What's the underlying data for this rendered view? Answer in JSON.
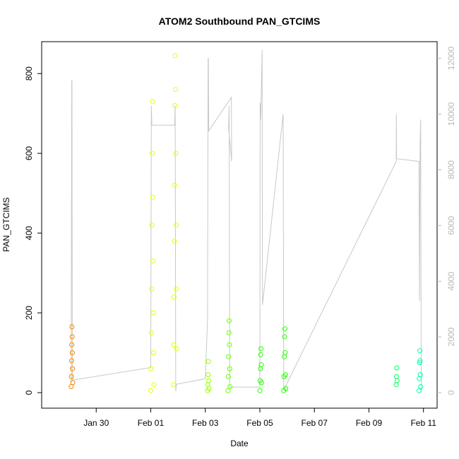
{
  "chart_data": {
    "type": "scatter",
    "title": "ATOM2 Southbound PAN_GTCIMS",
    "xlabel": "Date",
    "ylabel": "PAN_GTCIMS",
    "xlim": [
      "2017-01-28T00:00",
      "2017-02-11T12:00"
    ],
    "ylim": [
      0,
      880
    ],
    "y2lim": [
      0,
      12600
    ],
    "x_ticks": [
      {
        "date": "2017-01-30",
        "label": "Jan 30"
      },
      {
        "date": "2017-02-01",
        "label": "Feb 01"
      },
      {
        "date": "2017-02-03",
        "label": "Feb 03"
      },
      {
        "date": "2017-02-05",
        "label": "Feb 05"
      },
      {
        "date": "2017-02-07",
        "label": "Feb 07"
      },
      {
        "date": "2017-02-09",
        "label": "Feb 09"
      },
      {
        "date": "2017-02-11",
        "label": "Feb 11"
      }
    ],
    "y_ticks": [
      0,
      200,
      400,
      600,
      800
    ],
    "y2_ticks": [
      0,
      2000,
      4000,
      6000,
      8000,
      10000,
      12000
    ],
    "grid": false,
    "series": [
      {
        "color": "#f28a00",
        "points": [
          {
            "x": "2017-01-29T02:00",
            "y": 15
          },
          {
            "x": "2017-01-29T02:10",
            "y": 40
          },
          {
            "x": "2017-01-29T02:20",
            "y": 80
          },
          {
            "x": "2017-01-29T02:30",
            "y": 120
          },
          {
            "x": "2017-01-29T02:40",
            "y": 165
          },
          {
            "x": "2017-01-29T02:50",
            "y": 140
          },
          {
            "x": "2017-01-29T03:00",
            "y": 100
          },
          {
            "x": "2017-01-29T03:10",
            "y": 60
          },
          {
            "x": "2017-01-29T03:20",
            "y": 25
          }
        ]
      },
      {
        "color": "#e6ff00",
        "points": [
          {
            "x": "2017-02-01T00:00",
            "y": 5
          },
          {
            "x": "2017-02-01T00:15",
            "y": 60
          },
          {
            "x": "2017-02-01T00:30",
            "y": 150
          },
          {
            "x": "2017-02-01T00:45",
            "y": 260
          },
          {
            "x": "2017-02-01T01:00",
            "y": 420
          },
          {
            "x": "2017-02-01T01:15",
            "y": 600
          },
          {
            "x": "2017-02-01T01:30",
            "y": 730
          },
          {
            "x": "2017-02-01T01:45",
            "y": 490
          },
          {
            "x": "2017-02-01T02:00",
            "y": 330
          },
          {
            "x": "2017-02-01T02:15",
            "y": 200
          },
          {
            "x": "2017-02-01T02:30",
            "y": 100
          },
          {
            "x": "2017-02-01T02:45",
            "y": 20
          },
          {
            "x": "2017-02-01T20:00",
            "y": 20
          },
          {
            "x": "2017-02-01T20:15",
            "y": 120
          },
          {
            "x": "2017-02-01T20:30",
            "y": 240
          },
          {
            "x": "2017-02-01T20:45",
            "y": 380
          },
          {
            "x": "2017-02-01T21:00",
            "y": 520
          },
          {
            "x": "2017-02-01T21:15",
            "y": 720
          },
          {
            "x": "2017-02-01T21:30",
            "y": 845
          },
          {
            "x": "2017-02-01T21:45",
            "y": 760
          },
          {
            "x": "2017-02-01T22:00",
            "y": 600
          },
          {
            "x": "2017-02-01T22:15",
            "y": 420
          },
          {
            "x": "2017-02-01T22:30",
            "y": 260
          },
          {
            "x": "2017-02-01T22:45",
            "y": 110
          }
        ]
      },
      {
        "color": "#99ff00",
        "points": [
          {
            "x": "2017-02-03T02:00",
            "y": 5
          },
          {
            "x": "2017-02-03T02:15",
            "y": 20
          },
          {
            "x": "2017-02-03T02:30",
            "y": 45
          },
          {
            "x": "2017-02-03T02:45",
            "y": 78
          },
          {
            "x": "2017-02-03T03:00",
            "y": 30
          },
          {
            "x": "2017-02-03T03:15",
            "y": 10
          }
        ]
      },
      {
        "color": "#66ff00",
        "points": [
          {
            "x": "2017-02-03T20:00",
            "y": 5
          },
          {
            "x": "2017-02-03T20:15",
            "y": 40
          },
          {
            "x": "2017-02-03T20:30",
            "y": 90
          },
          {
            "x": "2017-02-03T20:45",
            "y": 150
          },
          {
            "x": "2017-02-03T21:00",
            "y": 180
          },
          {
            "x": "2017-02-03T21:15",
            "y": 120
          },
          {
            "x": "2017-02-03T21:30",
            "y": 60
          },
          {
            "x": "2017-02-03T21:45",
            "y": 15
          }
        ]
      },
      {
        "color": "#22ff00",
        "points": [
          {
            "x": "2017-02-05T00:00",
            "y": 5
          },
          {
            "x": "2017-02-05T00:15",
            "y": 30
          },
          {
            "x": "2017-02-05T00:30",
            "y": 60
          },
          {
            "x": "2017-02-05T00:45",
            "y": 95
          },
          {
            "x": "2017-02-05T01:00",
            "y": 110
          },
          {
            "x": "2017-02-05T01:15",
            "y": 70
          },
          {
            "x": "2017-02-05T01:30",
            "y": 25
          },
          {
            "x": "2017-02-05T21:00",
            "y": 5
          },
          {
            "x": "2017-02-05T21:15",
            "y": 40
          },
          {
            "x": "2017-02-05T21:30",
            "y": 90
          },
          {
            "x": "2017-02-05T21:45",
            "y": 140
          },
          {
            "x": "2017-02-05T22:00",
            "y": 160
          },
          {
            "x": "2017-02-05T22:15",
            "y": 100
          },
          {
            "x": "2017-02-05T22:30",
            "y": 45
          },
          {
            "x": "2017-02-05T22:45",
            "y": 10
          }
        ]
      },
      {
        "color": "#00ff5a",
        "points": [
          {
            "x": "2017-02-10T00:00",
            "y": 20
          },
          {
            "x": "2017-02-10T00:15",
            "y": 40
          },
          {
            "x": "2017-02-10T00:30",
            "y": 62
          },
          {
            "x": "2017-02-10T00:45",
            "y": 30
          }
        ]
      },
      {
        "color": "#00ffb0",
        "points": [
          {
            "x": "2017-02-10T20:00",
            "y": 5
          },
          {
            "x": "2017-02-10T20:15",
            "y": 35
          },
          {
            "x": "2017-02-10T20:30",
            "y": 75
          },
          {
            "x": "2017-02-10T20:45",
            "y": 105
          },
          {
            "x": "2017-02-10T21:00",
            "y": 80
          },
          {
            "x": "2017-02-10T21:15",
            "y": 45
          },
          {
            "x": "2017-02-10T21:30",
            "y": 15
          }
        ]
      }
    ],
    "line_series": {
      "axis": "right",
      "color": "#c8c8c8",
      "points": [
        {
          "x": "2017-01-29T02:00",
          "y": 350
        },
        {
          "x": "2017-01-29T02:30",
          "y": 11200
        },
        {
          "x": "2017-01-29T02:40",
          "y": 11200
        },
        {
          "x": "2017-01-29T03:00",
          "y": 450
        },
        {
          "x": "2017-02-01T00:00",
          "y": 900
        },
        {
          "x": "2017-02-01T00:30",
          "y": 10300
        },
        {
          "x": "2017-02-01T01:00",
          "y": 9600
        },
        {
          "x": "2017-02-01T21:00",
          "y": 9600
        },
        {
          "x": "2017-02-01T21:30",
          "y": 10300
        },
        {
          "x": "2017-02-01T22:00",
          "y": 50
        },
        {
          "x": "2017-02-01T22:30",
          "y": 300
        },
        {
          "x": "2017-02-03T00:00",
          "y": 500
        },
        {
          "x": "2017-02-03T02:00",
          "y": 2600
        },
        {
          "x": "2017-02-03T02:30",
          "y": 12000
        },
        {
          "x": "2017-02-03T02:45",
          "y": 12000
        },
        {
          "x": "2017-02-03T03:00",
          "y": 9400
        },
        {
          "x": "2017-02-03T23:00",
          "y": 10600
        },
        {
          "x": "2017-02-03T23:10",
          "y": 8300
        },
        {
          "x": "2017-02-03T20:30",
          "y": 9500
        },
        {
          "x": "2017-02-03T21:00",
          "y": 10300
        },
        {
          "x": "2017-02-03T21:30",
          "y": 200
        },
        {
          "x": "2017-02-05T00:00",
          "y": 200
        },
        {
          "x": "2017-02-05T00:15",
          "y": 10400
        },
        {
          "x": "2017-02-05T00:45",
          "y": 9800
        },
        {
          "x": "2017-02-05T02:00",
          "y": 12300
        },
        {
          "x": "2017-02-05T02:20",
          "y": 3150
        },
        {
          "x": "2017-02-05T20:00",
          "y": 9800
        },
        {
          "x": "2017-02-05T20:30",
          "y": 10000
        },
        {
          "x": "2017-02-05T21:00",
          "y": 100
        },
        {
          "x": "2017-02-10T00:00",
          "y": 8300
        },
        {
          "x": "2017-02-10T00:10",
          "y": 10000
        },
        {
          "x": "2017-02-10T00:20",
          "y": 8400
        },
        {
          "x": "2017-02-10T20:00",
          "y": 8300
        },
        {
          "x": "2017-02-10T20:30",
          "y": 3300
        },
        {
          "x": "2017-02-10T21:00",
          "y": 8900
        },
        {
          "x": "2017-02-10T21:30",
          "y": 9800
        },
        {
          "x": "2017-02-10T22:00",
          "y": 0
        }
      ]
    }
  }
}
